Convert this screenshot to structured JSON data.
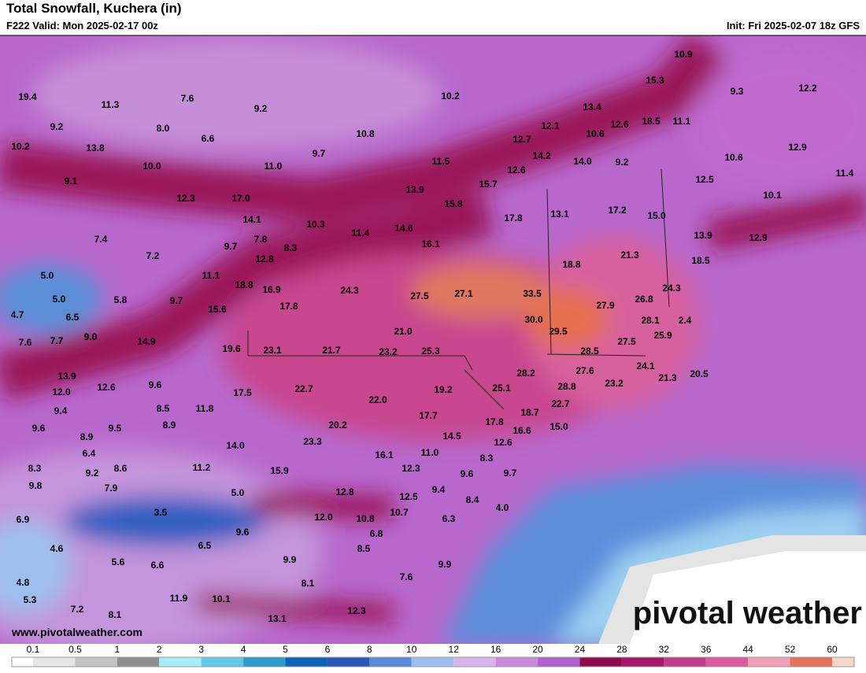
{
  "header": {
    "title": "Total Snowfall, Kuchera (in)",
    "valid": "F222 Valid: Mon 2025-02-17 00z",
    "init": "Init: Fri 2025-02-07 18z GFS"
  },
  "map": {
    "labels": [
      "19.4",
      "11.3",
      "7.6",
      "9.2",
      "10.2",
      "10.9",
      "15.3",
      "9.3",
      "12.2",
      "9.2",
      "8.0",
      "6.6",
      "10.8",
      "13.4",
      "12.1",
      "10.6",
      "12.6",
      "18.5",
      "11.1",
      "10.2",
      "13.8",
      "9.7",
      "12.7",
      "14.2",
      "14.0",
      "9.2",
      "12.9",
      "10.0",
      "11.0",
      "11.5",
      "12.6",
      "10.6",
      "11.4",
      "9.1",
      "12.5",
      "15.7",
      "13.9",
      "17.0",
      "12.3",
      "15.8",
      "17.8",
      "13.1",
      "17.2",
      "15.0",
      "10.1",
      "14.1",
      "10.3",
      "11.4",
      "14.6",
      "13.9",
      "12.9",
      "7.4",
      "7.8",
      "9.7",
      "8.3",
      "16.1",
      "21.3",
      "18.5",
      "7.2",
      "12.8",
      "18.8",
      "5.0",
      "11.1",
      "18.8",
      "16.9",
      "24.3",
      "27.5",
      "27.1",
      "33.5",
      "27.9",
      "26.8",
      "24.3",
      "5.0",
      "5.8",
      "9.7",
      "15.6",
      "17.8",
      "30.0",
      "28.1",
      "2.4",
      "4.7",
      "6.5",
      "29.5",
      "25.9",
      "7.6",
      "7.7",
      "9.0",
      "14.9",
      "19.6",
      "23.1",
      "21.7",
      "21.0",
      "23.2",
      "25.3",
      "28.5",
      "27.5",
      "28.2",
      "27.6",
      "24.1",
      "20.5",
      "21.3",
      "13.9",
      "12.0",
      "12.6",
      "9.6",
      "17.5",
      "22.7",
      "19.2",
      "25.1",
      "28.8",
      "23.2",
      "22.0",
      "9.4",
      "8.5",
      "11.8",
      "18.7",
      "22.7",
      "9.6",
      "8.9",
      "9.5",
      "8.9",
      "20.2",
      "17.7",
      "17.8",
      "16.6",
      "15.0",
      "14.0",
      "23.3",
      "14.5",
      "12.6",
      "6.4",
      "11.0",
      "16.1",
      "8.3",
      "8.3",
      "9.2",
      "8.6",
      "11.2",
      "15.9",
      "12.3",
      "9.6",
      "9.7",
      "9.8",
      "7.9",
      "5.0",
      "12.8",
      "12.5",
      "9.4",
      "8.4",
      "3.5",
      "12.0",
      "10.8",
      "10.7",
      "6.3",
      "6.9",
      "4.0",
      "9.6",
      "6.8",
      "4.6",
      "6.5",
      "8.5",
      "5.6",
      "6.6",
      "9.9",
      "9.9",
      "4.8",
      "8.1",
      "7.6",
      "5.3",
      "11.9",
      "10.1",
      "7.2",
      "8.1",
      "12.3",
      "13.1"
    ]
  },
  "legend": {
    "ticks": [
      "0.1",
      "0.5",
      "1",
      "2",
      "3",
      "4",
      "5",
      "6",
      "8",
      "10",
      "12",
      "16",
      "20",
      "24",
      "28",
      "32",
      "36",
      "44",
      "52",
      "60"
    ],
    "colors": [
      "#ffffff",
      "#e6e6e6",
      "#c4c4c4",
      "#8e8e8e",
      "#a9ecf9",
      "#66c6e6",
      "#2c9ccf",
      "#0d63b6",
      "#2a56b6",
      "#5a8bd8",
      "#9dbfee",
      "#d9b3ea",
      "#c88ad9",
      "#b161cd",
      "#8e0a4e",
      "#a3176a",
      "#c13c8a",
      "#dc5aa0",
      "#f0a0b8",
      "#e6725e",
      "#f5d8c8"
    ]
  },
  "footer": {
    "url": "www.pivotalweather.com",
    "brand": "pivotal weather"
  }
}
